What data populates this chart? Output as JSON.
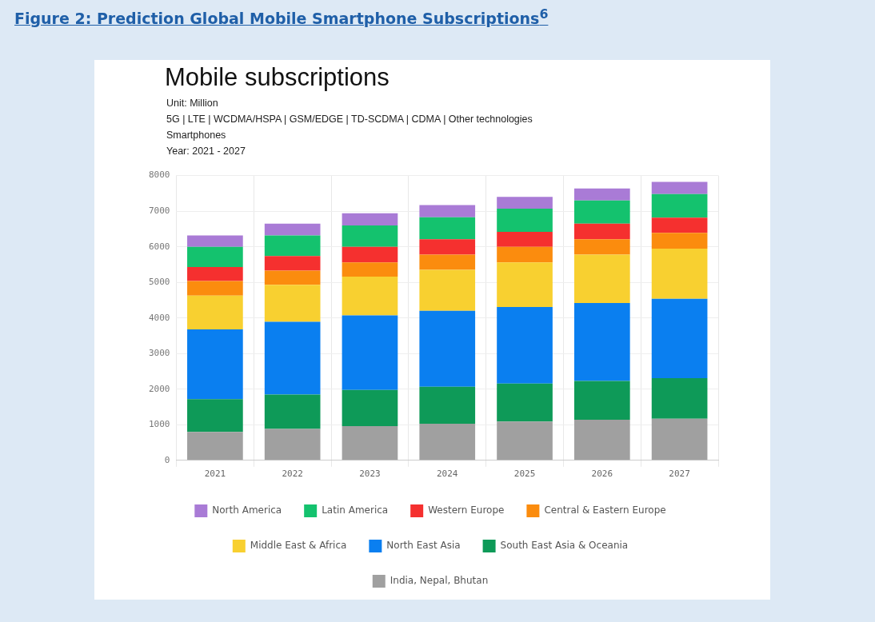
{
  "chart_data": {
    "type": "bar",
    "title": "Figure 2: Prediction Global Mobile Smartphone Subscriptions$^{6}$",
    "subtitle": "Mobile subscriptions",
    "annotations": [
      "Unit: Million",
      "5G | LTE | WCDMA/HSPA | GSM/EDGE | TD-SCDMA | CDMA | Other technologies",
      "Smartphones",
      "Year: 2021 - 2027"
    ],
    "categories": [
      "2021",
      "2022",
      "2023",
      "2024",
      "2025",
      "2026",
      "2027"
    ],
    "stacked": true,
    "ylim": [
      0,
      8000
    ],
    "yticks": [
      0,
      1000,
      2000,
      3000,
      4000,
      5000,
      6000,
      7000,
      8000
    ],
    "grid": true,
    "legend": "bottom",
    "series": [
      {
        "name": "India, Nepal, Bhutan",
        "color": "#a0a0a0",
        "values": [
          800,
          880,
          960,
          1030,
          1090,
          1140,
          1170
        ]
      },
      {
        "name": "South East Asia & Oceania",
        "color": "#0e9a58",
        "values": [
          920,
          970,
          1020,
          1040,
          1070,
          1090,
          1140
        ]
      },
      {
        "name": "North East Asia",
        "color": "#0a7ff0",
        "values": [
          1960,
          2040,
          2090,
          2130,
          2150,
          2190,
          2230
        ]
      },
      {
        "name": "Middle East & Africa",
        "color": "#f8d030",
        "values": [
          950,
          1040,
          1090,
          1150,
          1250,
          1360,
          1410
        ]
      },
      {
        "name": "Central & Eastern Europe",
        "color": "#fb8c0e",
        "values": [
          410,
          400,
          400,
          430,
          440,
          430,
          440
        ]
      },
      {
        "name": "Western Europe",
        "color": "#f5302f",
        "values": [
          390,
          410,
          440,
          430,
          420,
          440,
          430
        ]
      },
      {
        "name": "Latin America",
        "color": "#14c26e",
        "values": [
          570,
          580,
          600,
          620,
          650,
          650,
          660
        ]
      },
      {
        "name": "North America",
        "color": "#a97bd6",
        "values": [
          320,
          330,
          340,
          340,
          330,
          340,
          340
        ]
      }
    ]
  }
}
